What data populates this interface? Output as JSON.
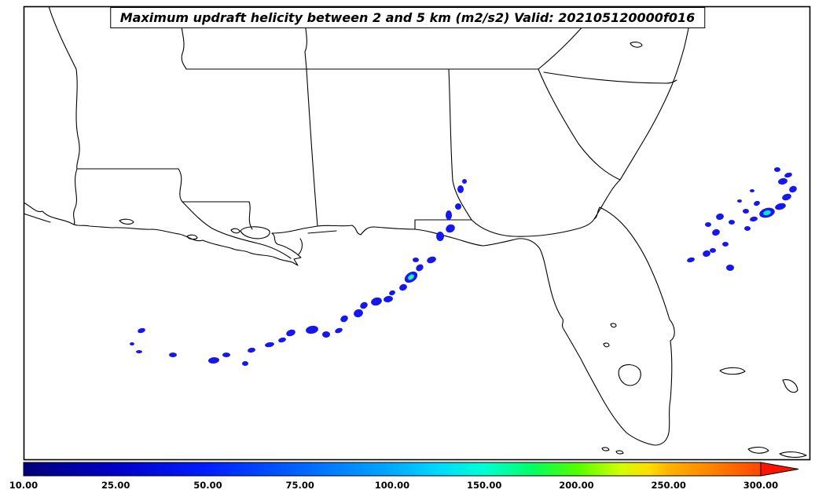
{
  "title": {
    "text": "Maximum updraft helicity between 2 and 5 km (m2/s2) Valid: 202105120000f016"
  },
  "chart_data": {
    "type": "map",
    "region": "Southeastern United States, Gulf of Mexico and western Atlantic",
    "variable": "Maximum updraft helicity between 2 and 5 km",
    "units": "m2/s2",
    "valid": "202105120000f016",
    "colors": {
      "blob_outer": "#1616f0",
      "blob_mid": "#00e6c8",
      "blob_core": "#64ff50",
      "line": "#000000",
      "background": "#ffffff"
    },
    "colorbar": {
      "tick_labels": [
        "10.00",
        "25.00",
        "50.00",
        "75.00",
        "100.00",
        "150.00",
        "200.00",
        "250.00",
        "300.00"
      ],
      "tick_values": [
        10,
        25,
        50,
        75,
        100,
        150,
        200,
        250,
        300
      ],
      "arrow_color": "#ff1400",
      "gradient_stops": [
        {
          "offset": "0%",
          "color": "#00007a"
        },
        {
          "offset": "12.5%",
          "color": "#0000c8"
        },
        {
          "offset": "25%",
          "color": "#001eff"
        },
        {
          "offset": "37.5%",
          "color": "#0064ff"
        },
        {
          "offset": "50%",
          "color": "#00aaff"
        },
        {
          "offset": "56%",
          "color": "#00d7ff"
        },
        {
          "offset": "62.5%",
          "color": "#00ffd2"
        },
        {
          "offset": "69%",
          "color": "#00ff64"
        },
        {
          "offset": "75%",
          "color": "#50ff00"
        },
        {
          "offset": "81%",
          "color": "#d2ff00"
        },
        {
          "offset": "85%",
          "color": "#ffdc00"
        },
        {
          "offset": "87.5%",
          "color": "#ffb400"
        },
        {
          "offset": "94%",
          "color": "#ff7d00"
        },
        {
          "offset": "100%",
          "color": "#ff4600"
        }
      ]
    },
    "helicity_blobs": [
      [
        168,
        438,
        3,
        2,
        0,
        0
      ],
      [
        180,
        421,
        5,
        3,
        -15,
        0
      ],
      [
        177,
        448,
        4,
        2,
        0,
        0
      ],
      [
        220,
        452,
        5,
        3,
        0,
        0
      ],
      [
        272,
        459,
        7,
        4,
        -5,
        0
      ],
      [
        288,
        452,
        5,
        3,
        0,
        0
      ],
      [
        312,
        463,
        4,
        3,
        0,
        0
      ],
      [
        320,
        446,
        5,
        3,
        -10,
        0
      ],
      [
        343,
        439,
        6,
        3,
        -10,
        0
      ],
      [
        359,
        433,
        5,
        3,
        -15,
        0
      ],
      [
        370,
        424,
        6,
        4,
        -20,
        0
      ],
      [
        397,
        420,
        8,
        5,
        -10,
        0
      ],
      [
        415,
        426,
        5,
        4,
        0,
        0
      ],
      [
        431,
        421,
        5,
        3,
        -20,
        0
      ],
      [
        438,
        406,
        5,
        4,
        -30,
        0
      ],
      [
        456,
        399,
        6,
        5,
        -20,
        0
      ],
      [
        463,
        389,
        5,
        4,
        -30,
        0
      ],
      [
        479,
        384,
        7,
        5,
        -15,
        0
      ],
      [
        494,
        381,
        6,
        4,
        -10,
        0
      ],
      [
        499,
        373,
        4,
        3,
        -20,
        0
      ],
      [
        513,
        366,
        5,
        4,
        -25,
        0
      ],
      [
        523,
        353,
        9,
        6,
        -35,
        2
      ],
      [
        534,
        341,
        5,
        4,
        -35,
        0
      ],
      [
        529,
        331,
        4,
        3,
        0,
        0
      ],
      [
        549,
        331,
        6,
        4,
        -20,
        0
      ],
      [
        560,
        301,
        5,
        6,
        0,
        0
      ],
      [
        573,
        291,
        6,
        5,
        -30,
        0
      ],
      [
        571,
        274,
        4,
        6,
        0,
        0
      ],
      [
        583,
        263,
        4,
        4,
        0,
        0
      ],
      [
        586,
        241,
        4,
        5,
        0,
        0
      ],
      [
        591,
        231,
        3,
        3,
        0,
        0
      ],
      [
        879,
        331,
        5,
        3,
        -15,
        0
      ],
      [
        899,
        323,
        5,
        4,
        -15,
        0
      ],
      [
        907,
        319,
        4,
        3,
        0,
        0
      ],
      [
        929,
        341,
        5,
        4,
        0,
        0
      ],
      [
        923,
        311,
        4,
        3,
        0,
        0
      ],
      [
        911,
        296,
        5,
        4,
        -20,
        0
      ],
      [
        901,
        286,
        4,
        3,
        0,
        0
      ],
      [
        916,
        276,
        5,
        4,
        -15,
        0
      ],
      [
        931,
        283,
        4,
        3,
        0,
        0
      ],
      [
        951,
        291,
        4,
        3,
        0,
        0
      ],
      [
        959,
        279,
        5,
        3,
        -10,
        0
      ],
      [
        949,
        269,
        4,
        3,
        0,
        0
      ],
      [
        963,
        259,
        4,
        3,
        -20,
        0
      ],
      [
        976,
        271,
        10,
        6,
        -15,
        1
      ],
      [
        993,
        263,
        7,
        4,
        -15,
        0
      ],
      [
        1001,
        251,
        6,
        4,
        -20,
        0
      ],
      [
        1009,
        241,
        5,
        4,
        -25,
        0
      ],
      [
        996,
        231,
        6,
        4,
        -10,
        0
      ],
      [
        1003,
        223,
        5,
        3,
        -15,
        0
      ],
      [
        989,
        216,
        4,
        3,
        0,
        0
      ],
      [
        957,
        243,
        3,
        2,
        0,
        0
      ],
      [
        941,
        256,
        3,
        2,
        0,
        0
      ]
    ],
    "basemap": {
      "coastline": [
        "M 30,258 C 40,263 46,272 54,269 C 64,280 80,278 92,285 C 100,289 106,286 114,288 L 142,290 C 162,289 178,293 194,292 C 208,293 218,297 228,298 C 240,301 248,309 258,306 C 270,311 282,313 294,316 C 302,320 310,318 318,322 C 328,326 340,324 350,328 C 358,332 366,332 372,334 L 379,338 L 374,330 L 383,328 L 376,322 C 369,317 361,313 353,311 C 347,307 352,301 346,297 C 360,297 373,294 386,291 L 404,288 C 420,286 436,289 448,287 C 455,291 452,297 459,299 C 463,294 467,289 475,289 C 491,290 509,292 528,292 C 546,294 561,299 576,303 C 591,307 603,312 615,313 C 631,311 646,307 659,304 C 671,303 681,308 687,317 C 693,330 695,346 699,362 C 703,380 709,396 715,405 C 719,409 713,413 717,419 C 723,429 731,443 739,457 C 747,473 757,491 767,509 C 775,523 785,539 797,551 C 807,559 821,565 833,567 C 843,567 849,561 851,551 C 853,536 850,524 853,509 C 855,484 856,459 853,434 C 861,429 859,415 852,407 C 846,387 838,364 828,342 C 820,324 810,307 798,292 C 788,280 776,270 763,264 C 759,271 761,276 756,279 C 763,268 771,253 779,241 C 784,234 787,231 789,229 C 797,216 807,199 819,179 C 831,159 843,136 853,113 C 859,99 865,81 871,59 C 875,41 879,25 881,8"
      ],
      "state_borders": [
        "M 62,8 C 70,34 84,62 97,88",
        "M 231,8 C 225,28 239,52 232,68 C 229,78 235,84 237,88",
        "M 237,88 L 685,88",
        "M 389,8 C 384,28 395,50 388,66 L 390,88",
        "M 97,88 C 101,118 93,148 100,178 C 104,198 96,208 98,215",
        "M 98,215 L 227,215",
        "M 98,215 C 91,235 102,252 95,266 C 91,276 97,282 94,286",
        "M 227,215 C 237,230 223,246 232,257",
        "M 232,257 L 317,257",
        "M 317,257 C 321,268 313,280 321,292",
        "M 232,257 C 244,269 254,281 270,291 C 290,301 312,306 332,311 C 347,315 360,322 370,329",
        "M 390,88 C 394,152 398,214 404,288",
        "M 571,88 C 573,136 573,184 576,230 C 579,248 590,264 600,280",
        "M 528,292 L 528,280 L 600,280",
        "M 600,280 C 613,293 633,300 653,301 C 681,302 711,298 736,291 C 747,288 753,284 756,279",
        "M 762,8 C 742,36 712,66 685,88",
        "M 685,88 C 697,118 716,151 736,183 C 753,206 771,221 789,229",
        "M 692,92 C 740,100 795,106 848,106 C 854,106 858,104 861,102"
      ],
      "lakes_islands": [
        "M 306,294 C 311,288 329,287 340,292 C 346,295 343,301 335,303 C 323,306 309,301 306,294 Z",
        "M 294,293 C 298,290 304,291 305,295 C 303,298 296,297 294,293 Z",
        "M 152,281 C 158,278 168,279 170,283 C 166,287 156,286 152,281 Z",
        "M 238,301 C 243,298 250,299 251,303 C 247,306 240,305 238,301 Z",
        "M 30,272 C 42,276 54,280 64,283",
        "M 392,297 C 404,296 416,295 428,294",
        "M 382,304 C 386,310 385,318 380,324",
        "M 788,470 C 794,462 808,463 814,471 C 818,480 812,491 801,491 C 791,490 785,479 788,470 Z",
        "M 777,413 C 780,411 784,412 784,415 C 782,418 778,417 777,413 Z",
        "M 768,438 C 771,436 775,437 775,440 C 773,443 769,442 768,438 Z",
        "M 802,55 C 808,52 816,54 817,58 C 812,62 804,60 802,55 Z",
        "M 916,472 C 928,466 944,468 948,473 C 940,478 922,478 916,472 Z",
        "M 996,484 C 1006,482 1014,488 1015,497 C 1010,503 1002,498 999,491 Z",
        "M 952,572 C 962,568 974,569 978,574 C 970,579 957,578 952,572 Z",
        "M 992,578 C 1002,574 1016,575 1026,580 C 1016,584 1000,583 992,578 Z",
        "M 766,571 C 770,569 774,570 775,573 C 771,575 767,574 766,571 Z",
        "M 784,575 C 788,573 792,574 793,577 C 789,579 785,578 784,575 Z"
      ]
    }
  }
}
